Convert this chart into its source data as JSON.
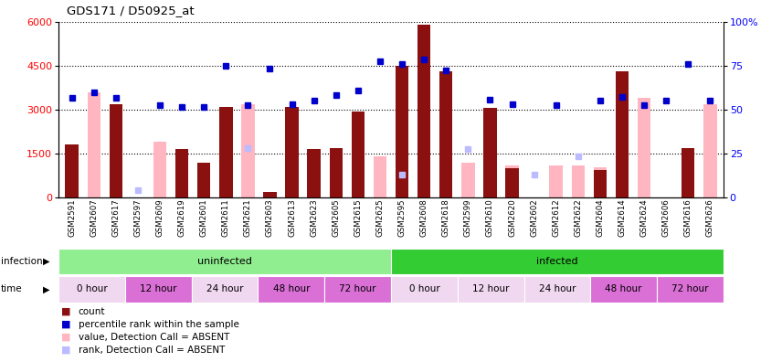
{
  "title": "GDS171 / D50925_at",
  "samples": [
    "GSM2591",
    "GSM2607",
    "GSM2617",
    "GSM2597",
    "GSM2609",
    "GSM2619",
    "GSM2601",
    "GSM2611",
    "GSM2621",
    "GSM2603",
    "GSM2613",
    "GSM2623",
    "GSM2605",
    "GSM2615",
    "GSM2625",
    "GSM2595",
    "GSM2608",
    "GSM2618",
    "GSM2599",
    "GSM2610",
    "GSM2620",
    "GSM2602",
    "GSM2612",
    "GSM2622",
    "GSM2604",
    "GSM2614",
    "GSM2624",
    "GSM2606",
    "GSM2616",
    "GSM2626"
  ],
  "red_values": [
    1800,
    0,
    3200,
    0,
    0,
    1650,
    1200,
    3100,
    0,
    200,
    3100,
    1650,
    1700,
    2950,
    0,
    4500,
    5900,
    4300,
    0,
    3050,
    1000,
    0,
    0,
    0,
    950,
    4300,
    0,
    0,
    1700,
    0
  ],
  "pink_values": [
    0,
    3600,
    0,
    0,
    1900,
    0,
    0,
    0,
    3200,
    0,
    0,
    0,
    0,
    0,
    1400,
    1050,
    0,
    0,
    1200,
    0,
    1100,
    0,
    1100,
    1100,
    1050,
    0,
    3400,
    0,
    0,
    3200
  ],
  "blue_values": [
    3400,
    3600,
    3400,
    0,
    3150,
    3100,
    3100,
    4500,
    3150,
    4400,
    3200,
    3300,
    3500,
    3650,
    4650,
    4550,
    4700,
    4350,
    0,
    3350,
    3200,
    0,
    3150,
    0,
    3300,
    3450,
    3150,
    3300,
    4550,
    3300
  ],
  "blue_absent": [
    false,
    false,
    false,
    false,
    false,
    false,
    false,
    false,
    false,
    false,
    false,
    false,
    false,
    false,
    false,
    false,
    false,
    false,
    true,
    false,
    false,
    true,
    false,
    true,
    false,
    false,
    false,
    false,
    false,
    false
  ],
  "lb_values": [
    0,
    0,
    0,
    250,
    0,
    0,
    0,
    0,
    1700,
    0,
    0,
    0,
    0,
    0,
    0,
    800,
    0,
    0,
    1650,
    0,
    0,
    800,
    0,
    1400,
    0,
    0,
    0,
    0,
    0,
    0
  ],
  "bar_color": "#8B1010",
  "pink_color": "#FFB6C1",
  "blue_color": "#0000CC",
  "lb_color": "#BBBBFF",
  "bg_color": "#FFFFFF",
  "infection_groups": [
    {
      "label": "uninfected",
      "start": 0,
      "end": 15,
      "color": "#90EE90"
    },
    {
      "label": "infected",
      "start": 15,
      "end": 30,
      "color": "#33CC33"
    }
  ],
  "time_groups": [
    {
      "label": "0 hour",
      "start": 0,
      "end": 3,
      "color": "#F0D8F0"
    },
    {
      "label": "12 hour",
      "start": 3,
      "end": 6,
      "color": "#DA70D6"
    },
    {
      "label": "24 hour",
      "start": 6,
      "end": 9,
      "color": "#F0D8F0"
    },
    {
      "label": "48 hour",
      "start": 9,
      "end": 12,
      "color": "#DA70D6"
    },
    {
      "label": "72 hour",
      "start": 12,
      "end": 15,
      "color": "#DA70D6"
    },
    {
      "label": "0 hour",
      "start": 15,
      "end": 18,
      "color": "#F0D8F0"
    },
    {
      "label": "12 hour",
      "start": 18,
      "end": 21,
      "color": "#F0D8F0"
    },
    {
      "label": "24 hour",
      "start": 21,
      "end": 24,
      "color": "#F0D8F0"
    },
    {
      "label": "48 hour",
      "start": 24,
      "end": 27,
      "color": "#DA70D6"
    },
    {
      "label": "72 hour",
      "start": 27,
      "end": 30,
      "color": "#DA70D6"
    }
  ],
  "legend": [
    {
      "label": "count",
      "color": "#8B1010"
    },
    {
      "label": "percentile rank within the sample",
      "color": "#0000CC"
    },
    {
      "label": "value, Detection Call = ABSENT",
      "color": "#FFB6C1"
    },
    {
      "label": "rank, Detection Call = ABSENT",
      "color": "#BBBBFF"
    }
  ]
}
